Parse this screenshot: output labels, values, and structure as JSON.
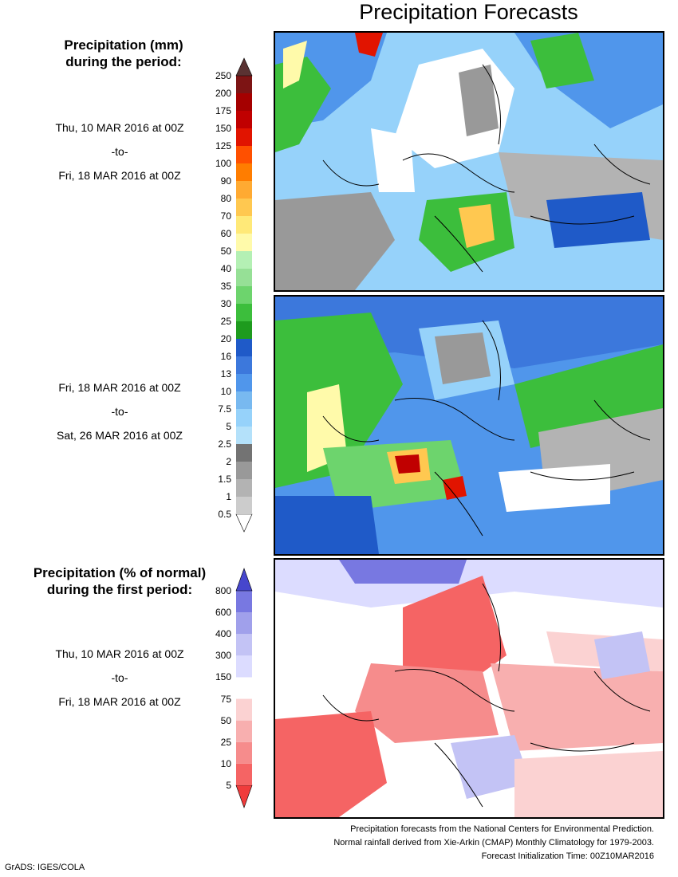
{
  "title": "Precipitation Forecasts",
  "legend_mm": {
    "heading_line1": "Precipitation (mm)",
    "heading_line2": "during the period:",
    "levels": [
      "0.5",
      "1",
      "1.5",
      "2",
      "2.5",
      "5",
      "7.5",
      "10",
      "13",
      "16",
      "20",
      "25",
      "30",
      "35",
      "40",
      "50",
      "60",
      "70",
      "80",
      "90",
      "100",
      "125",
      "150",
      "175",
      "200",
      "250"
    ],
    "colors": [
      "#cccccc",
      "#b3b3b3",
      "#999999",
      "#737373",
      "#b4e1fa",
      "#96d2fa",
      "#78b9f0",
      "#5096eb",
      "#3c78dc",
      "#1f5ac8",
      "#1e9b1e",
      "#3cbe3c",
      "#6dd46d",
      "#96e096",
      "#b4f0b4",
      "#fffaaa",
      "#ffe978",
      "#ffc850",
      "#ffaa32",
      "#ff7d00",
      "#ff5000",
      "#e11400",
      "#c00000",
      "#a50000",
      "#7d1414"
    ],
    "under_color": "#ffffff",
    "over_color": "#5a3232"
  },
  "legend_pct": {
    "heading_line1": "Precipitation (% of normal)",
    "heading_line2": "during the first period:",
    "levels": [
      "5",
      "10",
      "25",
      "50",
      "75",
      "150",
      "300",
      "400",
      "600",
      "800"
    ],
    "colors": [
      "#f56464",
      "#f68c8c",
      "#f8afaf",
      "#fbd2d2",
      "#ffffff",
      "#dcdcff",
      "#c3c3f5",
      "#a0a0eb",
      "#7878e1"
    ],
    "under_color": "#f03c3c",
    "over_color": "#4646cd"
  },
  "periods": [
    {
      "start": "Thu, 10 MAR 2016 at 00Z",
      "to": "-to-",
      "end": "Fri, 18 MAR 2016 at 00Z"
    },
    {
      "start": "Fri, 18 MAR 2016 at 00Z",
      "to": "-to-",
      "end": "Sat, 26 MAR 2016 at 00Z"
    },
    {
      "start": "Thu, 10 MAR 2016 at 00Z",
      "to": "-to-",
      "end": "Fri, 18 MAR 2016 at 00Z"
    }
  ],
  "footer": {
    "line1": "Precipitation forecasts from the National Centers for Environmental Prediction.",
    "line2": "Normal rainfall derived from Xie-Arkin (CMAP) Monthly Climatology for 1979-2003.",
    "line3": "Forecast Initialization Time: 00Z10MAR2016",
    "credit": "GrADS: IGES/COLA"
  }
}
